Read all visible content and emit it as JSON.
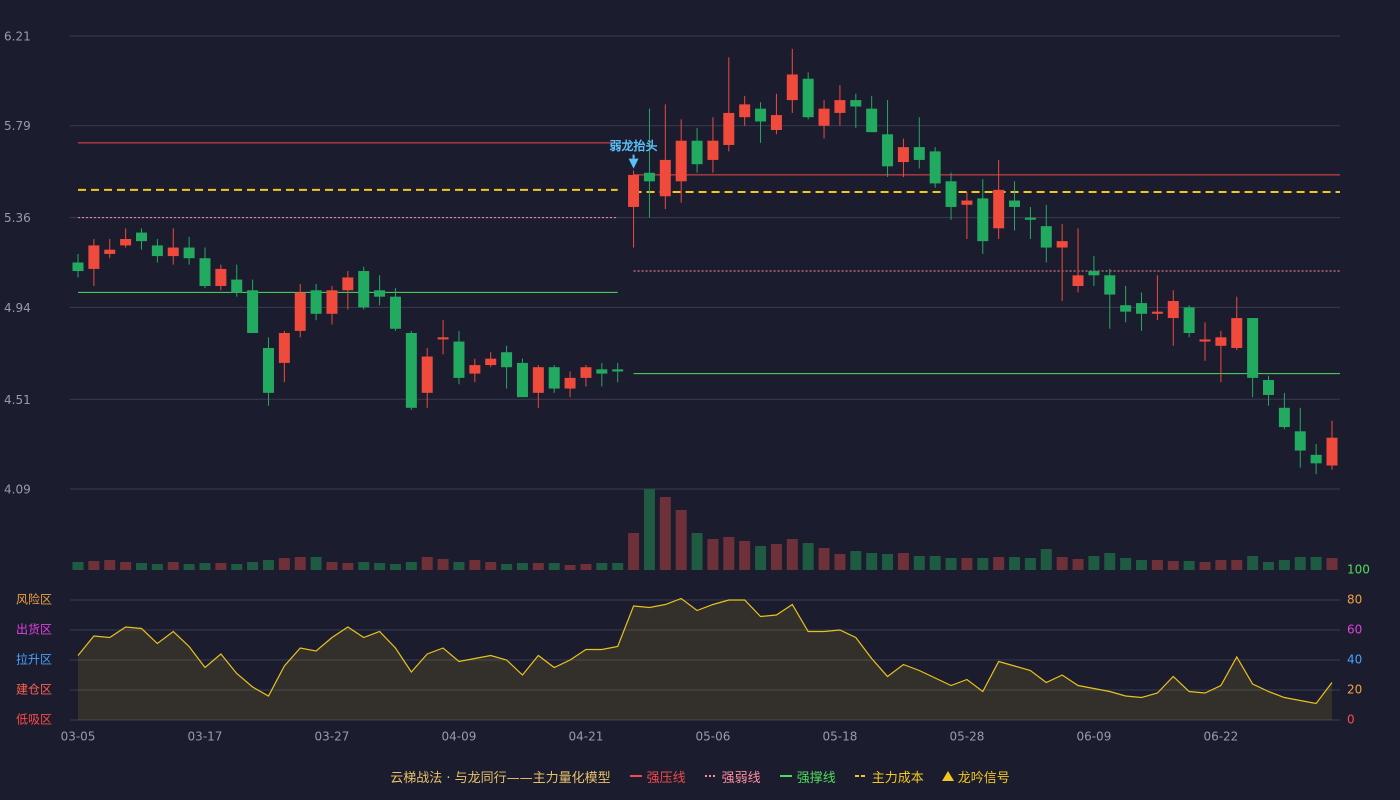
{
  "chart_data": [
    {
      "type": "candlestick",
      "categories": [
        "03-05",
        null,
        null,
        null,
        null,
        null,
        null,
        null,
        "03-17",
        null,
        null,
        null,
        null,
        null,
        null,
        null,
        "03-27",
        null,
        null,
        null,
        null,
        null,
        null,
        null,
        "04-09",
        null,
        null,
        null,
        null,
        null,
        null,
        null,
        "04-21",
        null,
        null,
        null,
        null,
        null,
        null,
        null,
        "05-06",
        null,
        null,
        null,
        null,
        null,
        null,
        null,
        "05-18",
        null,
        null,
        null,
        null,
        null,
        null,
        null,
        "05-28",
        null,
        null,
        null,
        null,
        null,
        null,
        null,
        "06-09",
        null,
        null,
        null,
        null,
        null,
        null,
        null,
        "06-22",
        null,
        null,
        null,
        null,
        null,
        null,
        null
      ],
      "open": [
        5.15,
        5.12,
        5.19,
        5.23,
        5.29,
        5.23,
        5.18,
        5.22,
        5.17,
        5.04,
        5.07,
        5.02,
        4.75,
        4.68,
        4.83,
        5.02,
        4.91,
        5.02,
        5.11,
        5.02,
        4.99,
        4.82,
        4.54,
        4.79,
        4.78,
        4.63,
        4.67,
        4.73,
        4.68,
        4.54,
        4.66,
        4.56,
        4.61,
        4.65,
        4.65,
        5.41,
        5.57,
        5.46,
        5.53,
        5.72,
        5.63,
        5.7,
        5.83,
        5.87,
        5.77,
        5.91,
        6.01,
        5.79,
        5.85,
        5.91,
        5.87,
        5.75,
        5.62,
        5.69,
        5.67,
        5.53,
        5.42,
        5.45,
        5.31,
        5.44,
        5.36,
        5.32,
        5.22,
        5.04,
        5.11,
        5.09,
        4.95,
        4.96,
        4.91,
        4.89,
        4.94,
        4.78,
        4.76,
        4.75,
        4.89,
        4.6,
        4.47,
        4.36,
        4.25,
        4.2
      ],
      "high": [
        5.19,
        5.26,
        5.26,
        5.31,
        5.31,
        5.26,
        5.31,
        5.27,
        5.22,
        5.14,
        5.14,
        5.07,
        4.8,
        4.83,
        5.05,
        5.05,
        5.04,
        5.11,
        5.13,
        5.09,
        5.03,
        4.83,
        4.75,
        4.88,
        4.83,
        4.7,
        4.73,
        4.76,
        4.7,
        4.67,
        4.67,
        4.64,
        4.67,
        4.68,
        4.68,
        5.58,
        5.87,
        5.89,
        5.82,
        5.78,
        5.83,
        6.11,
        5.93,
        5.9,
        5.94,
        6.15,
        6.04,
        5.91,
        5.98,
        5.94,
        5.93,
        5.91,
        5.73,
        5.83,
        5.69,
        5.57,
        5.48,
        5.54,
        5.63,
        5.53,
        5.41,
        5.42,
        5.33,
        5.31,
        5.18,
        5.12,
        5.04,
        5.01,
        5.09,
        5.02,
        4.95,
        4.87,
        4.83,
        4.99,
        4.89,
        4.62,
        4.54,
        4.47,
        4.3,
        4.41
      ],
      "low": [
        5.08,
        5.04,
        5.17,
        5.22,
        5.21,
        5.15,
        5.14,
        5.14,
        5.03,
        5.02,
        4.99,
        4.82,
        4.48,
        4.59,
        4.8,
        4.88,
        4.86,
        4.93,
        4.93,
        4.95,
        4.83,
        4.46,
        4.47,
        4.72,
        4.58,
        4.59,
        4.66,
        4.56,
        4.52,
        4.47,
        4.54,
        4.52,
        4.57,
        4.57,
        4.59,
        5.22,
        5.36,
        5.4,
        5.43,
        5.57,
        5.57,
        5.67,
        5.79,
        5.71,
        5.75,
        5.85,
        5.82,
        5.73,
        5.79,
        5.78,
        5.76,
        5.55,
        5.55,
        5.59,
        5.5,
        5.35,
        5.26,
        5.19,
        5.26,
        5.3,
        5.26,
        5.15,
        4.97,
        5.01,
        5.04,
        4.84,
        4.87,
        4.83,
        4.88,
        4.76,
        4.8,
        4.69,
        4.59,
        4.74,
        4.52,
        4.48,
        4.37,
        4.19,
        4.16,
        4.18
      ],
      "close": [
        5.11,
        5.23,
        5.21,
        5.26,
        5.25,
        5.18,
        5.22,
        5.17,
        5.04,
        5.12,
        5.01,
        4.82,
        4.54,
        4.82,
        5.01,
        4.91,
        5.02,
        5.08,
        4.94,
        4.99,
        4.84,
        4.47,
        4.71,
        4.8,
        4.61,
        4.67,
        4.7,
        4.66,
        4.52,
        4.66,
        4.56,
        4.61,
        4.66,
        4.63,
        4.64,
        5.56,
        5.53,
        5.63,
        5.72,
        5.61,
        5.72,
        5.85,
        5.89,
        5.81,
        5.84,
        6.03,
        5.83,
        5.87,
        5.91,
        5.88,
        5.76,
        5.6,
        5.69,
        5.63,
        5.52,
        5.41,
        5.44,
        5.25,
        5.49,
        5.41,
        5.35,
        5.22,
        5.25,
        5.09,
        5.09,
        5.0,
        4.92,
        4.91,
        4.92,
        4.97,
        4.82,
        4.79,
        4.8,
        4.89,
        4.61,
        4.53,
        4.38,
        4.27,
        4.21,
        4.33
      ],
      "up_color": "#ef4a3c",
      "down_color": "#22ab60",
      "ylim": [
        4.09,
        6.21
      ],
      "yticks": [
        4.09,
        4.51,
        4.94,
        5.36,
        5.79,
        6.21
      ],
      "grid": true,
      "levels": [
        {
          "name": "强压线",
          "color": "#f04a4a",
          "style": "solid",
          "segments": [
            {
              "from": 0,
              "to": 34,
              "value": 5.71
            },
            {
              "from": 35,
              "to": 79,
              "value": 5.56
            }
          ]
        },
        {
          "name": "强弱线",
          "color": "#ff8fa0",
          "style": "dotted",
          "segments": [
            {
              "from": 0,
              "to": 34,
              "value": 5.36
            },
            {
              "from": 35,
              "to": 79,
              "value": 5.11
            }
          ]
        },
        {
          "name": "强撑线",
          "color": "#4fdc5a",
          "style": "solid",
          "segments": [
            {
              "from": 0,
              "to": 34,
              "value": 5.01
            },
            {
              "from": 35,
              "to": 79,
              "value": 4.63
            }
          ]
        },
        {
          "name": "主力成本",
          "color": "#f2c81e",
          "style": "dashed",
          "segments": [
            {
              "from": 0,
              "to": 34,
              "value": 5.49
            },
            {
              "from": 35,
              "to": 79,
              "value": 5.48
            }
          ]
        }
      ],
      "signal": {
        "name": "龙吟信号",
        "color": "#f2c81e",
        "marker_color": "#5bc0f8",
        "marks": [
          {
            "index": 35,
            "text": "弱龙抬头"
          }
        ]
      }
    },
    {
      "type": "volume",
      "values": [
        8,
        9,
        10,
        8,
        7,
        6,
        8,
        6,
        7,
        7,
        6,
        8,
        10,
        12,
        13,
        13,
        8,
        7,
        8,
        7,
        6,
        8,
        13,
        11,
        8,
        10,
        8,
        6,
        7,
        7,
        7,
        5,
        6,
        7,
        7,
        37,
        81,
        73,
        60,
        37,
        31,
        33,
        29,
        24,
        26,
        31,
        27,
        22,
        16,
        19,
        17,
        16,
        17,
        14,
        14,
        12,
        12,
        12,
        13,
        13,
        12,
        21,
        13,
        11,
        14,
        17,
        12,
        10,
        10,
        9,
        9,
        8,
        10,
        10,
        14,
        8,
        10,
        13,
        13,
        12
      ],
      "up_color": "#6e3039",
      "down_color": "#1f5a42"
    },
    {
      "type": "line",
      "values": [
        43,
        56,
        55,
        62,
        61,
        51,
        59,
        49,
        35,
        44,
        31,
        22,
        16,
        36,
        48,
        46,
        55,
        62,
        55,
        59,
        48,
        32,
        44,
        48,
        39,
        41,
        43,
        40,
        30,
        43,
        35,
        40,
        47,
        47,
        49,
        76,
        75,
        77,
        81,
        73,
        77,
        80,
        80,
        69,
        70,
        77,
        59,
        59,
        60,
        55,
        41,
        29,
        37,
        33,
        28,
        23,
        27,
        19,
        39,
        36,
        33,
        25,
        30,
        23,
        21,
        19,
        16,
        15,
        18,
        29,
        19,
        18,
        23,
        42,
        24,
        19,
        15,
        13,
        11,
        25
      ],
      "color": "#e8c21c",
      "ylim": [
        0,
        100
      ],
      "yticks": [
        0,
        20,
        40,
        60,
        80,
        100
      ],
      "ytick_colors": [
        "#ff4a4a",
        "#f0a040",
        "#4aa0ff",
        "#e040e0",
        "#f0a040",
        "#4fdc5a"
      ],
      "zones": [
        {
          "value": 80,
          "label": "风险区",
          "color": "#f0a040"
        },
        {
          "value": 60,
          "label": "出货区",
          "color": "#e040e0"
        },
        {
          "value": 40,
          "label": "拉升区",
          "color": "#4aa0ff"
        },
        {
          "value": 20,
          "label": "建仓区",
          "color": "#ff6050"
        },
        {
          "value": 0,
          "label": "低吸区",
          "color": "#ff4a4a"
        }
      ]
    }
  ],
  "legend": {
    "title": "云梯战法 · 与龙同行——主力量化模型",
    "color": "#e8c06a"
  }
}
